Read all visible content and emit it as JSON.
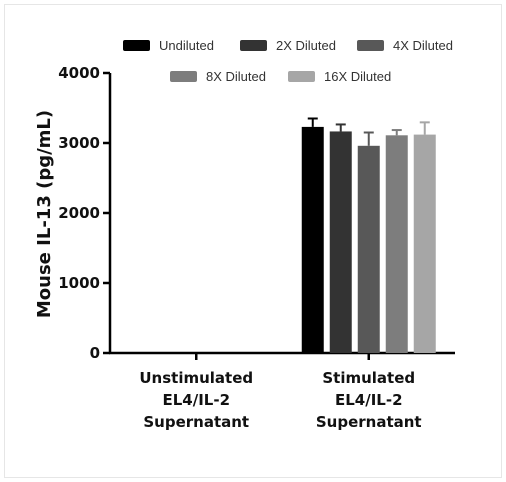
{
  "chart_data": {
    "type": "bar",
    "title": "",
    "xlabel": "",
    "ylabel": "Mouse IL-13 (pg/mL)",
    "ylim": [
      0,
      4000
    ],
    "yticks": [
      0,
      1000,
      2000,
      3000,
      4000
    ],
    "ytick_labels": [
      "0",
      "1000",
      "2000",
      "3000",
      "4000"
    ],
    "legend_position": "top",
    "categories": [
      [
        "Unstimulated",
        "EL4/IL-2",
        "Supernatant"
      ],
      [
        "Stimulated",
        "EL4/IL-2",
        "Supernatant"
      ]
    ],
    "series": [
      {
        "name": "Undiluted",
        "color": "#000000",
        "values": [
          0,
          3230
        ],
        "errors": [
          0,
          120
        ]
      },
      {
        "name": "2X Diluted",
        "color": "#333333",
        "values": [
          0,
          3165
        ],
        "errors": [
          0,
          100
        ]
      },
      {
        "name": "4X Diluted",
        "color": "#585858",
        "values": [
          0,
          2960
        ],
        "errors": [
          0,
          190
        ]
      },
      {
        "name": "8X Diluted",
        "color": "#7d7d7d",
        "values": [
          0,
          3110
        ],
        "errors": [
          0,
          75
        ]
      },
      {
        "name": "16X Diluted",
        "color": "#a6a6a6",
        "values": [
          0,
          3120
        ],
        "errors": [
          0,
          175
        ]
      }
    ]
  }
}
